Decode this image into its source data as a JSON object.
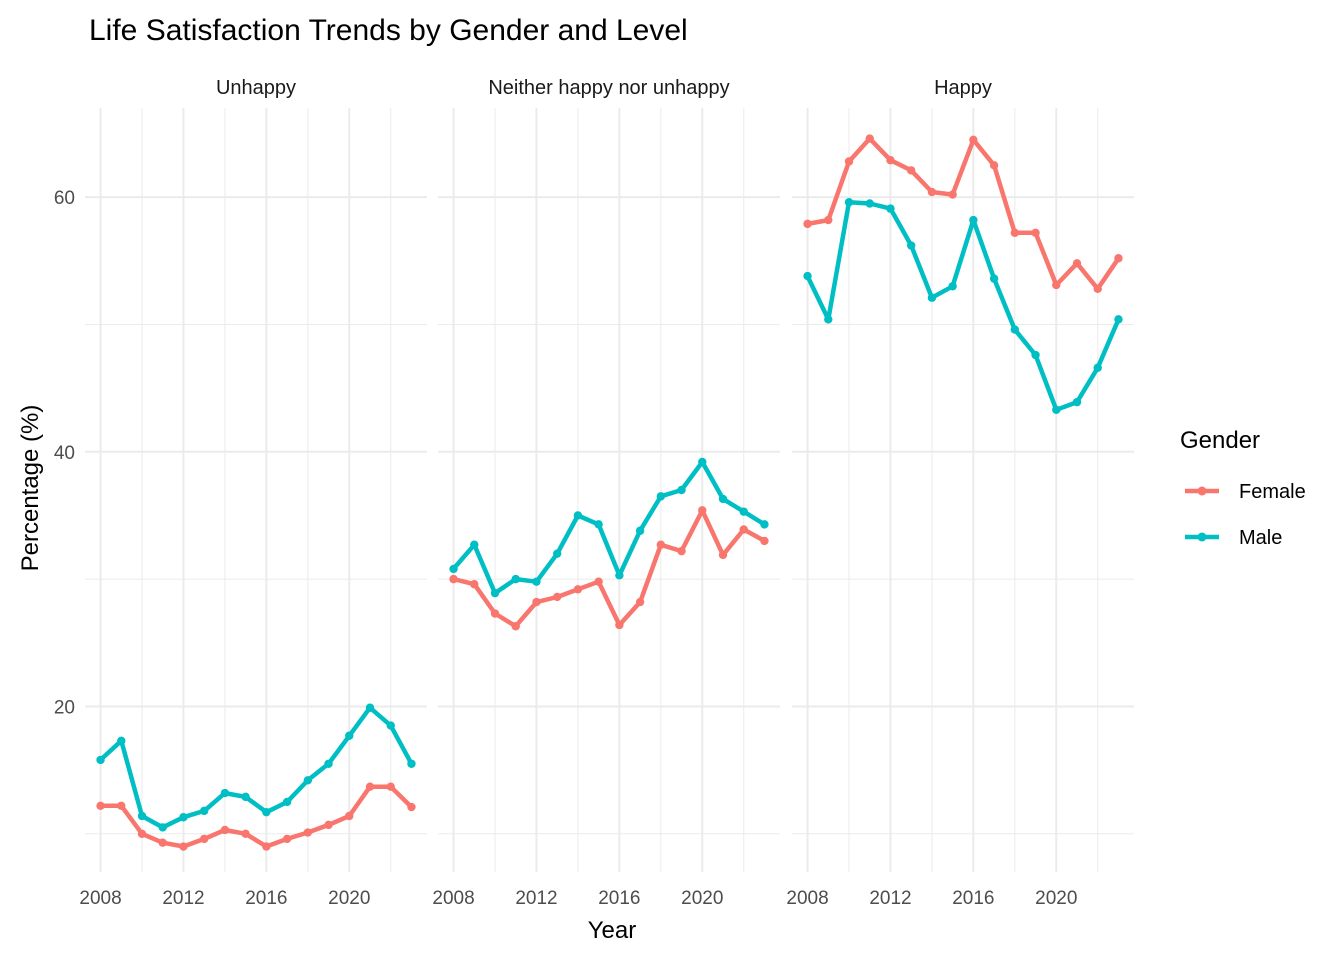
{
  "chart_data": {
    "type": "line",
    "title": "Life Satisfaction Trends by Gender and Level",
    "xlabel": "Year",
    "ylabel": "Percentage (%)",
    "x_ticks": [
      2008,
      2012,
      2016,
      2020
    ],
    "y_ticks": [
      20,
      40,
      60
    ],
    "xlim": [
      2007.25,
      2023.75
    ],
    "ylim": [
      7,
      67
    ],
    "grid": true,
    "legend": {
      "title": "Gender",
      "position": "right",
      "entries": [
        {
          "name": "Female",
          "color": "#F8766D"
        },
        {
          "name": "Male",
          "color": "#00BFC4"
        }
      ]
    },
    "x": [
      2008,
      2009,
      2010,
      2011,
      2012,
      2013,
      2014,
      2015,
      2016,
      2017,
      2018,
      2019,
      2020,
      2021,
      2022,
      2023
    ],
    "panels": [
      {
        "name": "Unhappy",
        "series": [
          {
            "name": "Female",
            "values": [
              12.2,
              12.2,
              10.0,
              9.3,
              9.0,
              9.6,
              10.3,
              10.0,
              9.0,
              9.6,
              10.1,
              10.7,
              11.4,
              13.7,
              13.7,
              12.1
            ]
          },
          {
            "name": "Male",
            "values": [
              15.8,
              17.3,
              11.4,
              10.5,
              11.3,
              11.8,
              13.2,
              12.9,
              11.7,
              12.5,
              14.2,
              15.5,
              17.7,
              19.9,
              18.5,
              15.5
            ]
          }
        ]
      },
      {
        "name": "Neither happy nor unhappy",
        "series": [
          {
            "name": "Female",
            "values": [
              30.0,
              29.6,
              27.3,
              26.3,
              28.2,
              28.6,
              29.2,
              29.8,
              26.4,
              28.2,
              32.7,
              32.2,
              35.4,
              31.9,
              33.9,
              33.0
            ]
          },
          {
            "name": "Male",
            "values": [
              30.8,
              32.7,
              28.9,
              30.0,
              29.8,
              32.0,
              35.0,
              34.3,
              30.3,
              33.8,
              36.5,
              37.0,
              39.2,
              36.3,
              35.3,
              34.3
            ]
          }
        ]
      },
      {
        "name": "Happy",
        "series": [
          {
            "name": "Female",
            "values": [
              57.9,
              58.2,
              62.8,
              64.6,
              62.9,
              62.1,
              60.4,
              60.2,
              64.5,
              62.5,
              57.2,
              57.2,
              53.1,
              54.8,
              52.8,
              55.2
            ]
          },
          {
            "name": "Male",
            "values": [
              53.8,
              50.4,
              59.6,
              59.5,
              59.1,
              56.2,
              52.1,
              53.0,
              58.2,
              53.6,
              49.6,
              47.6,
              43.3,
              43.9,
              46.6,
              50.4
            ]
          }
        ]
      }
    ]
  }
}
